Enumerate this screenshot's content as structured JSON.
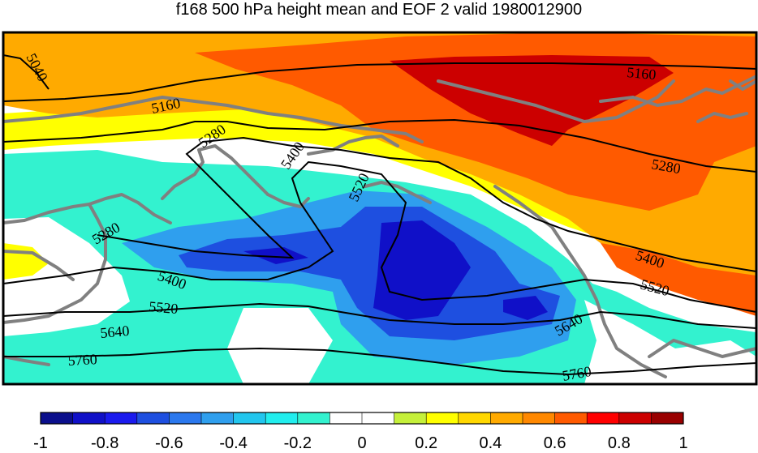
{
  "title": "f168 500 hPa height mean and EOF 2 valid 1980012900",
  "colorbar": {
    "colors": [
      "#0b0f8c",
      "#1010c8",
      "#1a1aee",
      "#1e4fe0",
      "#2b78ee",
      "#2f9fee",
      "#22c6ee",
      "#22eeee",
      "#33f2cf",
      "#ffffff",
      "#ffffff",
      "#c5f03a",
      "#ffff00",
      "#ffd700",
      "#ffaa00",
      "#ff8800",
      "#ff5a00",
      "#ff0000",
      "#cc0000",
      "#990000"
    ],
    "tick_labels": [
      "-1",
      "-0.8",
      "-0.6",
      "-0.4",
      "-0.2",
      "0",
      "0.2",
      "0.4",
      "0.6",
      "0.8",
      "1"
    ]
  },
  "contour_labels": [
    "5040",
    "5160",
    "5280",
    "5400",
    "5520",
    "5160",
    "5280",
    "5400",
    "5520",
    "5280",
    "5400",
    "5520",
    "5640",
    "5640",
    "5760",
    "5760"
  ],
  "palette": {
    "coast": "#808080",
    "dark_red": "#cc0000",
    "red_orange": "#ff5a00",
    "orange": "#ffaa00",
    "yellow": "#ffff00",
    "cyan": "#33f2cf",
    "light_blue": "#2f9fee",
    "blue": "#1e4fe0",
    "deep_blue": "#1010c8"
  }
}
